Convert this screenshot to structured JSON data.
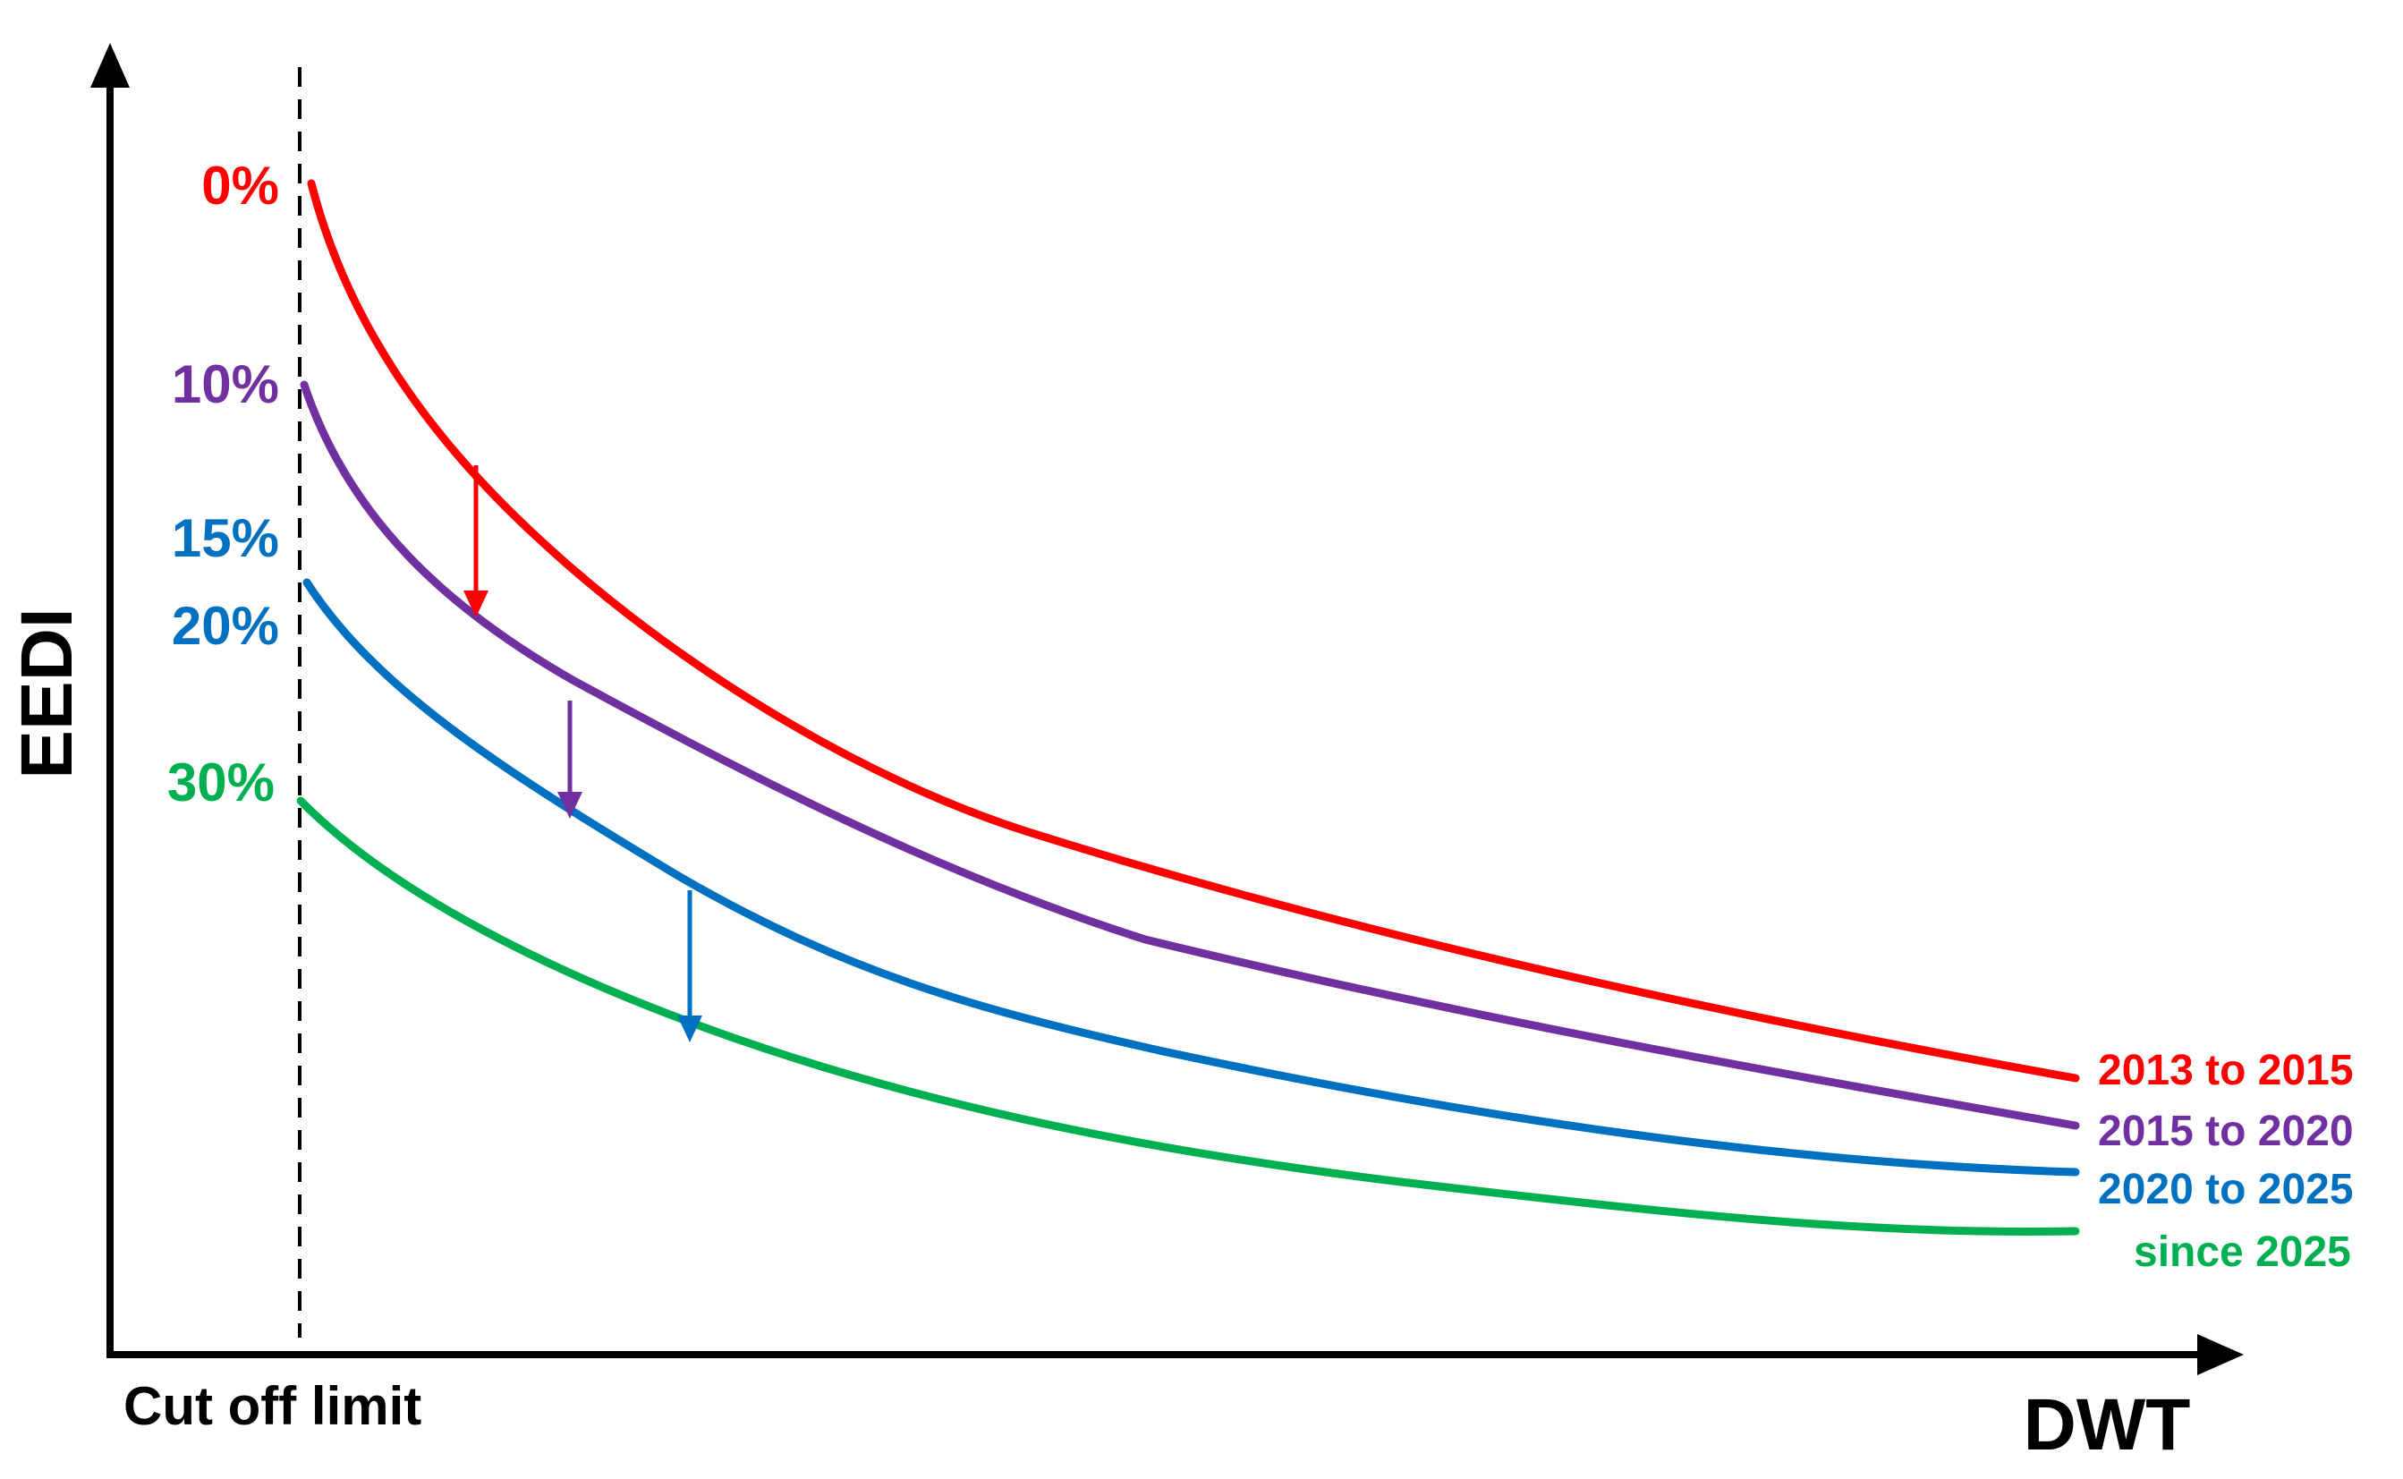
{
  "chart_data": {
    "type": "line",
    "xlabel": "DWT",
    "ylabel": "EEDI",
    "cutoff_label": "Cut off limit",
    "grid": false,
    "legend": "right end of each curve",
    "series": [
      {
        "name": "2013 to 2015",
        "reduction_label": "0%",
        "reduction": 0,
        "color": "#ff0000"
      },
      {
        "name": "2015 to 2020",
        "reduction_label": "10%",
        "reduction": 10,
        "color": "#7030a0"
      },
      {
        "name": "2020 to 2025",
        "reduction_label": "15%",
        "reduction": 15,
        "color": "#0070c0",
        "label_color": "#0070c0"
      },
      {
        "name": "",
        "reduction_label": "20%",
        "reduction": 20,
        "color": "#0070c0"
      },
      {
        "name": "since 2025",
        "reduction_label": "30%",
        "reduction": 30,
        "color": "#00b050"
      }
    ],
    "arrows": [
      {
        "from": "2013 to 2015",
        "to": "2015 to 2020",
        "color": "#ff0000"
      },
      {
        "from": "2015 to 2020",
        "to": "2020 to 2025",
        "color": "#7030a0"
      },
      {
        "from": "2020 to 2025",
        "to": "since 2025",
        "color": "#0070c0"
      }
    ]
  }
}
